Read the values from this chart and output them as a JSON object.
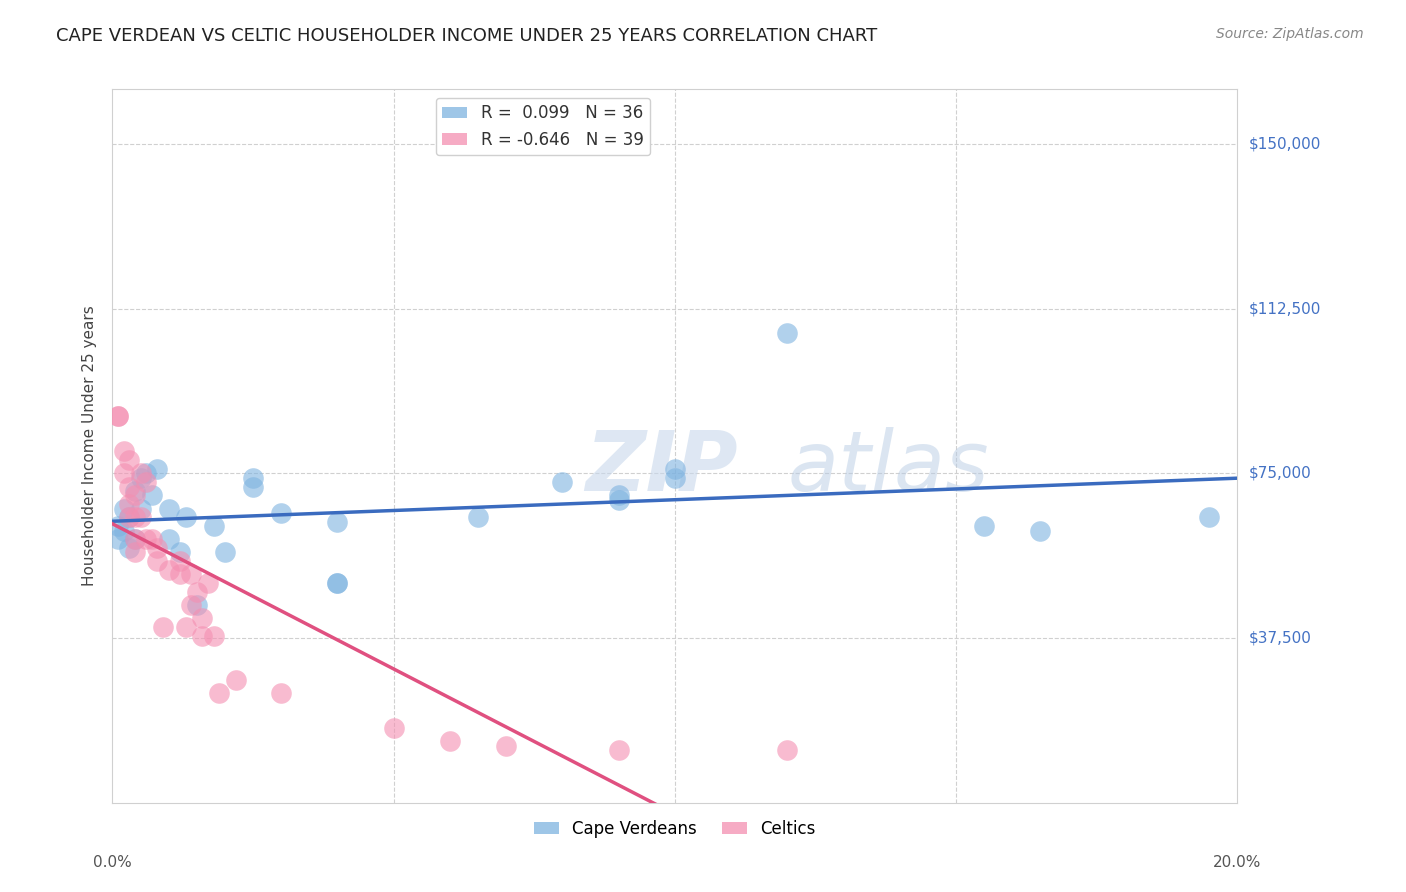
{
  "title": "CAPE VERDEAN VS CELTIC HOUSEHOLDER INCOME UNDER 25 YEARS CORRELATION CHART",
  "source": "Source: ZipAtlas.com",
  "ylabel": "Householder Income Under 25 years",
  "xlim": [
    0.0,
    0.2
  ],
  "ylim": [
    0,
    162500
  ],
  "ytick_vals": [
    37500,
    75000,
    112500,
    150000
  ],
  "ytick_labels": [
    "$37,500",
    "$75,000",
    "$112,500",
    "$150,000"
  ],
  "xtick_vals": [
    0.0,
    0.05,
    0.1,
    0.15,
    0.2
  ],
  "cape_verdean_color": "#7eb3e0",
  "celtic_color": "#f48fb1",
  "trend_cape_color": "#3a6bbf",
  "trend_celtic_color": "#e05080",
  "watermark_zip": "ZIP",
  "watermark_atlas": "atlas",
  "cape_verdean_r": 0.099,
  "cape_verdean_n": 36,
  "celtic_r": -0.646,
  "celtic_n": 39,
  "cape_verdean_data": [
    [
      0.001,
      63000
    ],
    [
      0.001,
      60000
    ],
    [
      0.002,
      67000
    ],
    [
      0.002,
      62000
    ],
    [
      0.003,
      65000
    ],
    [
      0.003,
      58000
    ],
    [
      0.004,
      71000
    ],
    [
      0.004,
      60000
    ],
    [
      0.005,
      74000
    ],
    [
      0.005,
      67000
    ],
    [
      0.006,
      75000
    ],
    [
      0.007,
      70000
    ],
    [
      0.008,
      76000
    ],
    [
      0.01,
      67000
    ],
    [
      0.01,
      60000
    ],
    [
      0.012,
      57000
    ],
    [
      0.013,
      65000
    ],
    [
      0.015,
      45000
    ],
    [
      0.018,
      63000
    ],
    [
      0.02,
      57000
    ],
    [
      0.025,
      74000
    ],
    [
      0.025,
      72000
    ],
    [
      0.03,
      66000
    ],
    [
      0.04,
      64000
    ],
    [
      0.04,
      50000
    ],
    [
      0.04,
      50000
    ],
    [
      0.065,
      65000
    ],
    [
      0.08,
      73000
    ],
    [
      0.09,
      70000
    ],
    [
      0.09,
      69000
    ],
    [
      0.1,
      76000
    ],
    [
      0.1,
      74000
    ],
    [
      0.12,
      107000
    ],
    [
      0.155,
      63000
    ],
    [
      0.165,
      62000
    ],
    [
      0.195,
      65000
    ]
  ],
  "celtic_data": [
    [
      0.001,
      88000
    ],
    [
      0.001,
      88000
    ],
    [
      0.002,
      80000
    ],
    [
      0.002,
      75000
    ],
    [
      0.003,
      78000
    ],
    [
      0.003,
      72000
    ],
    [
      0.003,
      68000
    ],
    [
      0.003,
      65000
    ],
    [
      0.004,
      70000
    ],
    [
      0.004,
      65000
    ],
    [
      0.004,
      60000
    ],
    [
      0.004,
      57000
    ],
    [
      0.005,
      75000
    ],
    [
      0.005,
      65000
    ],
    [
      0.006,
      73000
    ],
    [
      0.006,
      60000
    ],
    [
      0.007,
      60000
    ],
    [
      0.008,
      58000
    ],
    [
      0.008,
      55000
    ],
    [
      0.009,
      40000
    ],
    [
      0.01,
      53000
    ],
    [
      0.012,
      55000
    ],
    [
      0.012,
      52000
    ],
    [
      0.013,
      40000
    ],
    [
      0.014,
      52000
    ],
    [
      0.014,
      45000
    ],
    [
      0.015,
      48000
    ],
    [
      0.016,
      42000
    ],
    [
      0.016,
      38000
    ],
    [
      0.017,
      50000
    ],
    [
      0.018,
      38000
    ],
    [
      0.019,
      25000
    ],
    [
      0.022,
      28000
    ],
    [
      0.03,
      25000
    ],
    [
      0.05,
      17000
    ],
    [
      0.06,
      14000
    ],
    [
      0.07,
      13000
    ],
    [
      0.09,
      12000
    ],
    [
      0.12,
      12000
    ]
  ]
}
